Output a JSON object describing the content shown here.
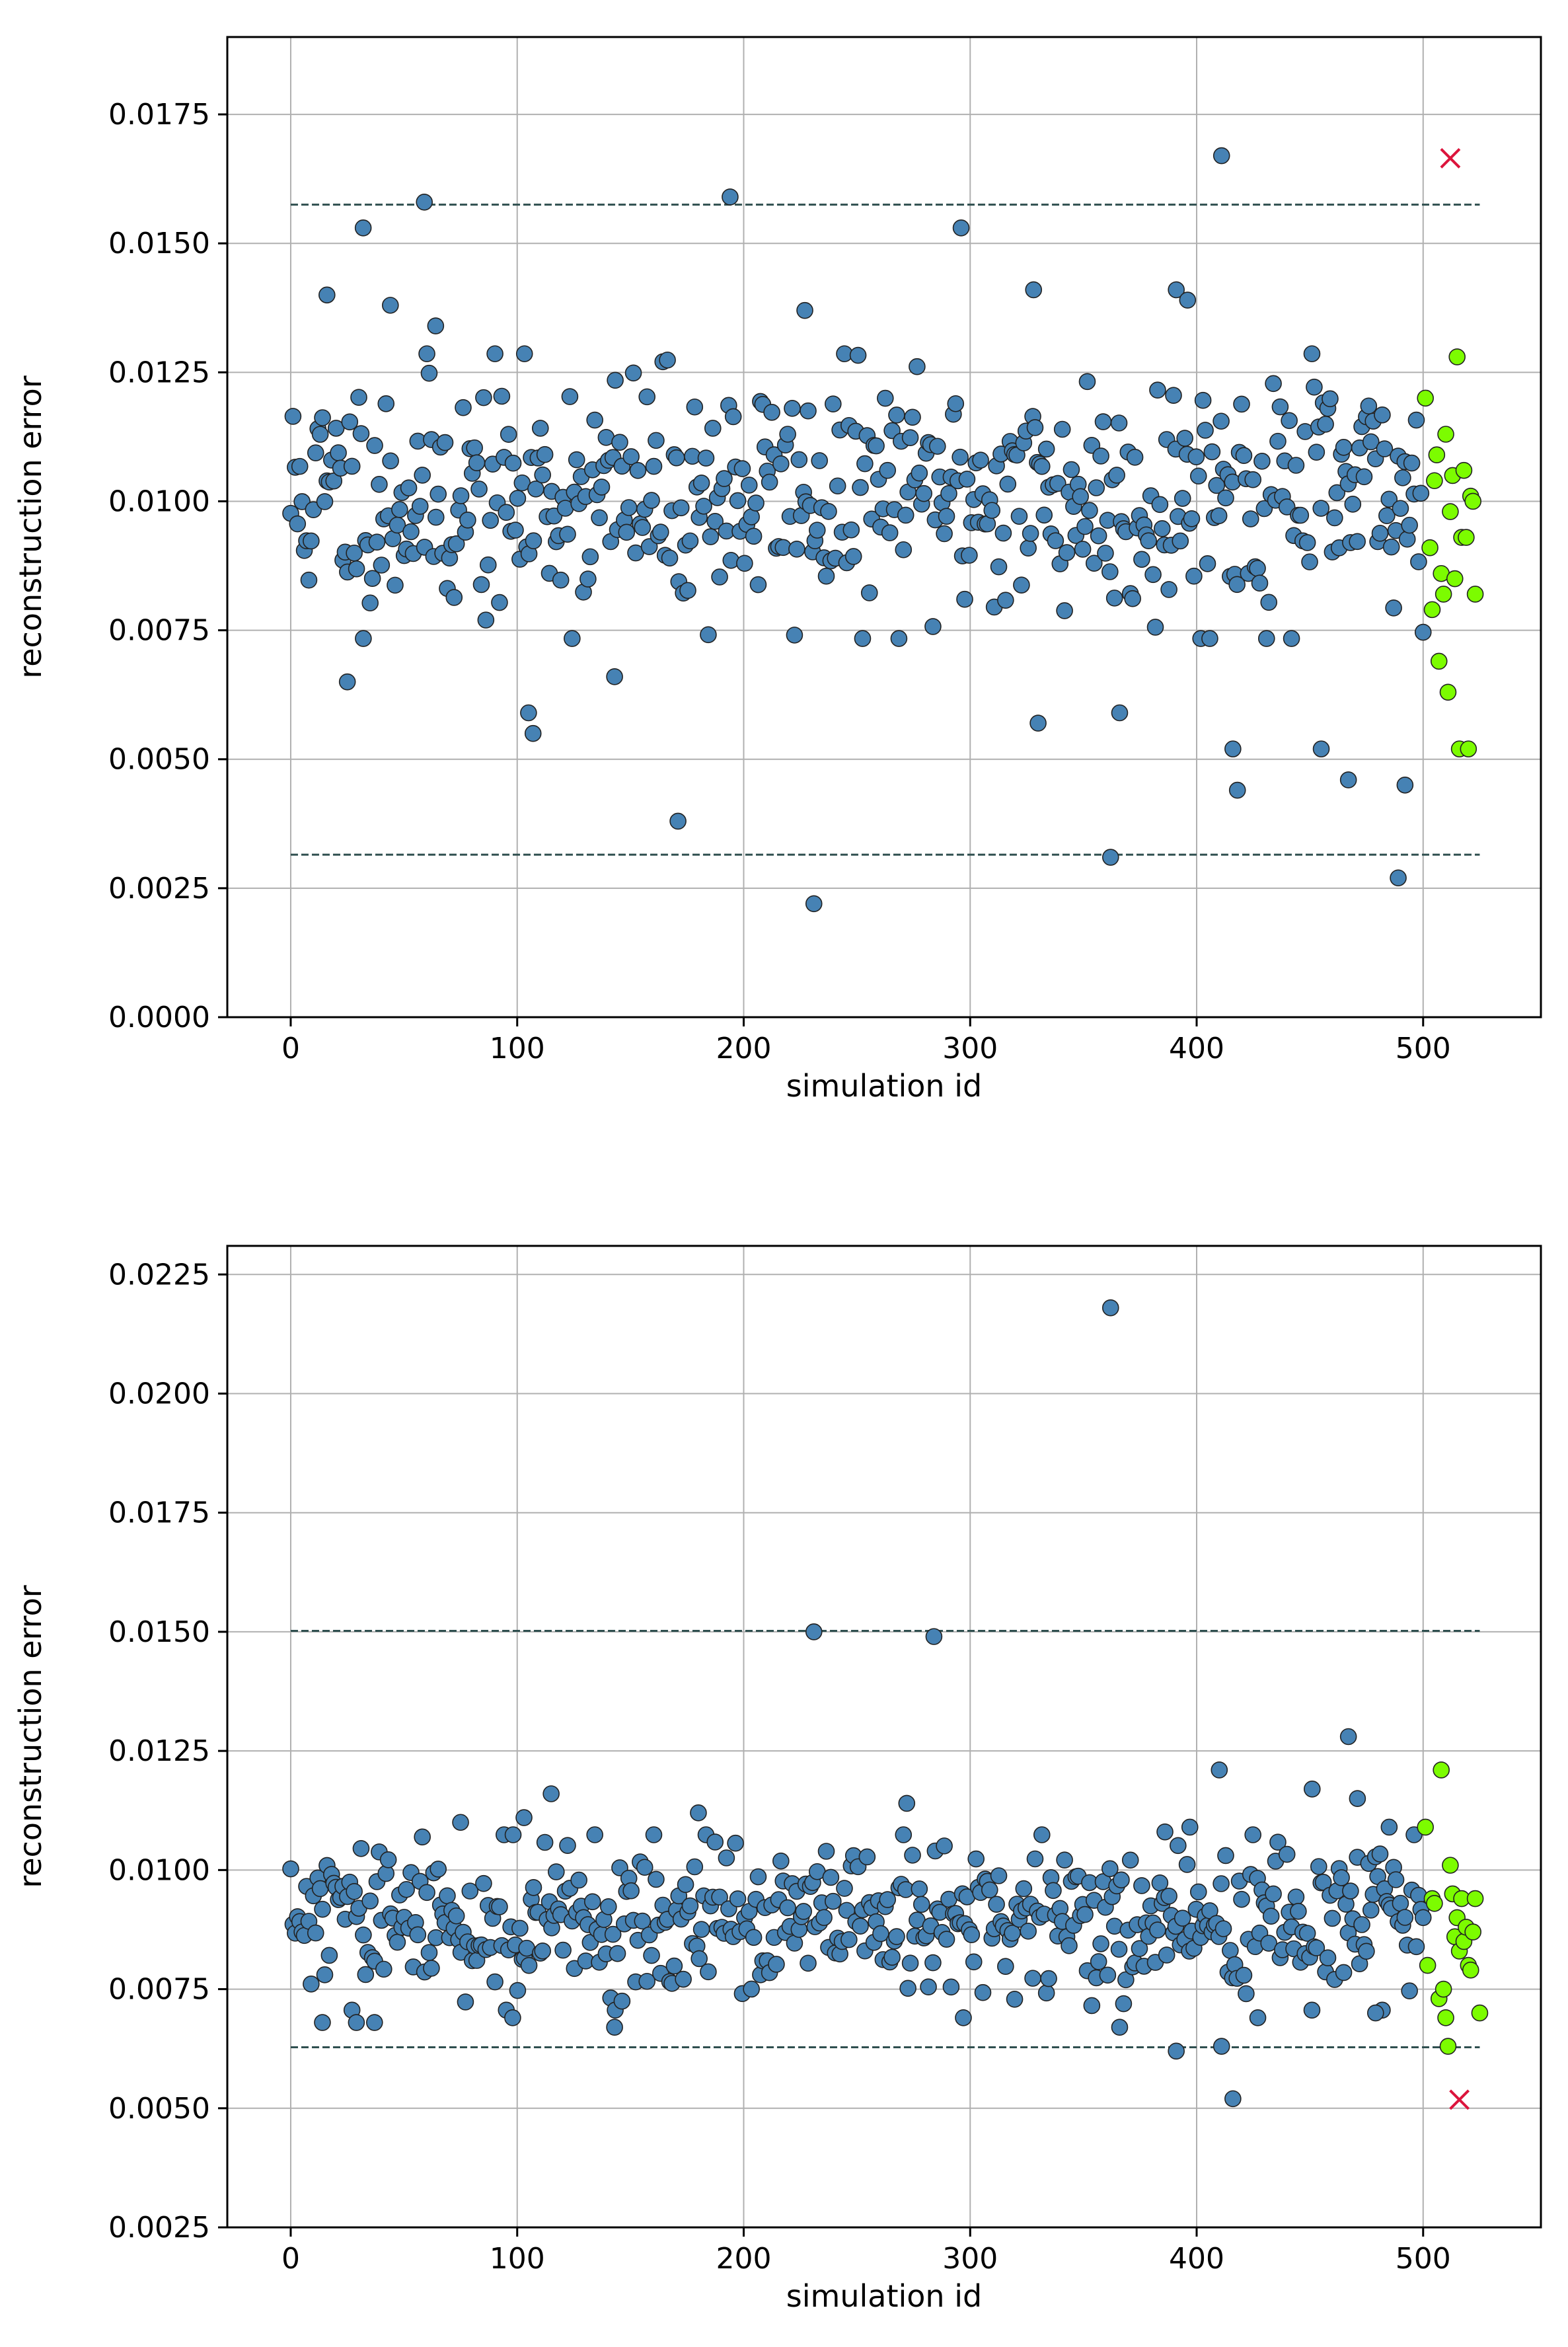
{
  "colors": {
    "main_points": "#4682b4",
    "test_points": "#7cfc00",
    "outlier_marker": "#dc143c",
    "threshold_line": "#2f4f4f",
    "grid": "#b0b0b0"
  },
  "chart_data": [
    {
      "type": "scatter",
      "xlabel": "simulation id",
      "ylabel": "reconstruction error",
      "xlim": [
        -28,
        552
      ],
      "ylim": [
        0.0,
        0.019
      ],
      "xticks": [
        0,
        100,
        200,
        300,
        400,
        500
      ],
      "yticks": [
        0.0,
        0.0025,
        0.005,
        0.0075,
        0.01,
        0.0125,
        0.015,
        0.0175
      ],
      "grid": true,
      "thresholds": {
        "upper": 0.01575,
        "lower": 0.00315,
        "x_range": [
          0,
          525
        ]
      },
      "outlier": {
        "x": 512,
        "y": 0.01665
      },
      "highlighted_points": [
        {
          "x": 501,
          "y": 0.012
        },
        {
          "x": 503,
          "y": 0.0091
        },
        {
          "x": 504,
          "y": 0.0079
        },
        {
          "x": 505,
          "y": 0.0104
        },
        {
          "x": 506,
          "y": 0.0109
        },
        {
          "x": 507,
          "y": 0.0069
        },
        {
          "x": 508,
          "y": 0.0086
        },
        {
          "x": 509,
          "y": 0.0082
        },
        {
          "x": 510,
          "y": 0.0113
        },
        {
          "x": 511,
          "y": 0.0063
        },
        {
          "x": 512,
          "y": 0.0098
        },
        {
          "x": 513,
          "y": 0.0105
        },
        {
          "x": 514,
          "y": 0.0085
        },
        {
          "x": 515,
          "y": 0.0128
        },
        {
          "x": 516,
          "y": 0.0052
        },
        {
          "x": 517,
          "y": 0.0093
        },
        {
          "x": 518,
          "y": 0.0106
        },
        {
          "x": 519,
          "y": 0.0093
        },
        {
          "x": 520,
          "y": 0.0052
        },
        {
          "x": 521,
          "y": 0.0101
        },
        {
          "x": 522,
          "y": 0.01
        },
        {
          "x": 523,
          "y": 0.0082
        }
      ],
      "notable_points": [
        {
          "x": 59,
          "y": 0.0158
        },
        {
          "x": 32,
          "y": 0.0153
        },
        {
          "x": 194,
          "y": 0.0159
        },
        {
          "x": 296,
          "y": 0.0153
        },
        {
          "x": 411,
          "y": 0.0167
        },
        {
          "x": 231,
          "y": 0.0022
        },
        {
          "x": 171,
          "y": 0.0038
        },
        {
          "x": 362,
          "y": 0.0031
        },
        {
          "x": 489,
          "y": 0.0027
        },
        {
          "x": 492,
          "y": 0.0045
        },
        {
          "x": 418,
          "y": 0.0044
        },
        {
          "x": 105,
          "y": 0.0059
        },
        {
          "x": 107,
          "y": 0.0055
        },
        {
          "x": 25,
          "y": 0.0065
        },
        {
          "x": 143,
          "y": 0.0066
        },
        {
          "x": 330,
          "y": 0.0057
        },
        {
          "x": 455,
          "y": 0.0052
        },
        {
          "x": 416,
          "y": 0.0052
        },
        {
          "x": 467,
          "y": 0.0046
        },
        {
          "x": 366,
          "y": 0.0059
        },
        {
          "x": 16,
          "y": 0.014
        },
        {
          "x": 328,
          "y": 0.0141
        },
        {
          "x": 391,
          "y": 0.0141
        },
        {
          "x": 44,
          "y": 0.0138
        },
        {
          "x": 396,
          "y": 0.0139
        },
        {
          "x": 227,
          "y": 0.0137
        },
        {
          "x": 64,
          "y": 0.0134
        }
      ],
      "bulk": {
        "n": 500,
        "x_range": [
          0,
          500
        ],
        "center": 0.0101,
        "spread": 0.0012,
        "seed": 11
      }
    },
    {
      "type": "scatter",
      "xlabel": "simulation id",
      "ylabel": "reconstruction error",
      "xlim": [
        -28,
        552
      ],
      "ylim": [
        0.0025,
        0.0231
      ],
      "xticks": [
        0,
        100,
        200,
        300,
        400,
        500
      ],
      "yticks": [
        0.0025,
        0.005,
        0.0075,
        0.01,
        0.0125,
        0.015,
        0.0175,
        0.02,
        0.0225
      ],
      "grid": true,
      "thresholds": {
        "upper": 0.01502,
        "lower": 0.00628,
        "x_range": [
          0,
          525
        ]
      },
      "outlier": {
        "x": 516,
        "y": 0.00518
      },
      "highlighted_points": [
        {
          "x": 501,
          "y": 0.0109
        },
        {
          "x": 502,
          "y": 0.008
        },
        {
          "x": 504,
          "y": 0.0094
        },
        {
          "x": 505,
          "y": 0.0093
        },
        {
          "x": 507,
          "y": 0.0073
        },
        {
          "x": 508,
          "y": 0.0121
        },
        {
          "x": 509,
          "y": 0.0075
        },
        {
          "x": 510,
          "y": 0.0069
        },
        {
          "x": 511,
          "y": 0.0063
        },
        {
          "x": 512,
          "y": 0.0101
        },
        {
          "x": 513,
          "y": 0.0095
        },
        {
          "x": 514,
          "y": 0.0086
        },
        {
          "x": 515,
          "y": 0.009
        },
        {
          "x": 516,
          "y": 0.0083
        },
        {
          "x": 517,
          "y": 0.0094
        },
        {
          "x": 518,
          "y": 0.0085
        },
        {
          "x": 519,
          "y": 0.0088
        },
        {
          "x": 520,
          "y": 0.008
        },
        {
          "x": 521,
          "y": 0.0079
        },
        {
          "x": 522,
          "y": 0.0087
        },
        {
          "x": 523,
          "y": 0.0094
        },
        {
          "x": 525,
          "y": 0.007
        }
      ],
      "notable_points": [
        {
          "x": 362,
          "y": 0.0218
        },
        {
          "x": 231,
          "y": 0.015
        },
        {
          "x": 284,
          "y": 0.0149
        },
        {
          "x": 467,
          "y": 0.0128
        },
        {
          "x": 410,
          "y": 0.0121
        },
        {
          "x": 451,
          "y": 0.0117
        },
        {
          "x": 115,
          "y": 0.0116
        },
        {
          "x": 272,
          "y": 0.0114
        },
        {
          "x": 471,
          "y": 0.0115
        },
        {
          "x": 180,
          "y": 0.0112
        },
        {
          "x": 103,
          "y": 0.0111
        },
        {
          "x": 75,
          "y": 0.011
        },
        {
          "x": 397,
          "y": 0.0109
        },
        {
          "x": 485,
          "y": 0.0109
        },
        {
          "x": 386,
          "y": 0.0108
        },
        {
          "x": 416,
          "y": 0.0052
        },
        {
          "x": 391,
          "y": 0.0062
        },
        {
          "x": 411,
          "y": 0.0063
        },
        {
          "x": 143,
          "y": 0.0067
        },
        {
          "x": 14,
          "y": 0.0068
        },
        {
          "x": 29,
          "y": 0.0068
        },
        {
          "x": 37,
          "y": 0.0068
        },
        {
          "x": 98,
          "y": 0.0069
        },
        {
          "x": 297,
          "y": 0.0069
        },
        {
          "x": 366,
          "y": 0.0067
        },
        {
          "x": 427,
          "y": 0.0069
        },
        {
          "x": 479,
          "y": 0.007
        }
      ],
      "bulk": {
        "n": 500,
        "x_range": [
          0,
          500
        ],
        "center": 0.0089,
        "spread": 0.0008,
        "seed": 29
      }
    }
  ]
}
